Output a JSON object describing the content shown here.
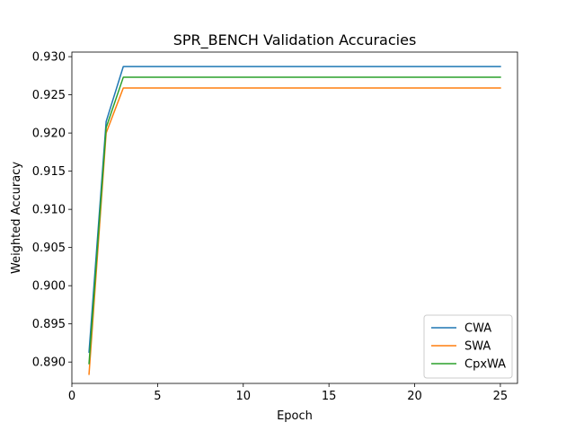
{
  "chart_data": {
    "type": "line",
    "title": "SPR_BENCH Validation Accuracies",
    "xlabel": "Epoch",
    "ylabel": "Weighted Accuracy",
    "xlim": [
      0,
      26
    ],
    "ylim": [
      0.8872,
      0.9306
    ],
    "xticks": [
      0,
      5,
      10,
      15,
      20,
      25
    ],
    "yticks": [
      0.89,
      0.895,
      0.9,
      0.905,
      0.91,
      0.915,
      0.92,
      0.925,
      0.93
    ],
    "ytick_labels": [
      "0.890",
      "0.895",
      "0.900",
      "0.905",
      "0.910",
      "0.915",
      "0.920",
      "0.925",
      "0.930"
    ],
    "grid": false,
    "legend_position": "lower-right",
    "x": [
      1,
      2,
      3,
      4,
      5,
      6,
      7,
      8,
      9,
      10,
      11,
      12,
      13,
      14,
      15,
      16,
      17,
      18,
      19,
      20,
      21,
      22,
      23,
      24,
      25
    ],
    "series": [
      {
        "name": "CWA",
        "color": "#1f77b4",
        "values": [
          0.8913,
          0.9215,
          0.9287,
          0.9287,
          0.9287,
          0.9287,
          0.9287,
          0.9287,
          0.9287,
          0.9287,
          0.9287,
          0.9287,
          0.9287,
          0.9287,
          0.9287,
          0.9287,
          0.9287,
          0.9287,
          0.9287,
          0.9287,
          0.9287,
          0.9287,
          0.9287,
          0.9287,
          0.9287
        ]
      },
      {
        "name": "SWA",
        "color": "#ff7f0e",
        "values": [
          0.8884,
          0.92,
          0.9259,
          0.9259,
          0.9259,
          0.9259,
          0.9259,
          0.9259,
          0.9259,
          0.9259,
          0.9259,
          0.9259,
          0.9259,
          0.9259,
          0.9259,
          0.9259,
          0.9259,
          0.9259,
          0.9259,
          0.9259,
          0.9259,
          0.9259,
          0.9259,
          0.9259,
          0.9259
        ]
      },
      {
        "name": "CpxWA",
        "color": "#2ca02c",
        "values": [
          0.8898,
          0.9207,
          0.9273,
          0.9273,
          0.9273,
          0.9273,
          0.9273,
          0.9273,
          0.9273,
          0.9273,
          0.9273,
          0.9273,
          0.9273,
          0.9273,
          0.9273,
          0.9273,
          0.9273,
          0.9273,
          0.9273,
          0.9273,
          0.9273,
          0.9273,
          0.9273,
          0.9273,
          0.9273
        ]
      }
    ]
  }
}
